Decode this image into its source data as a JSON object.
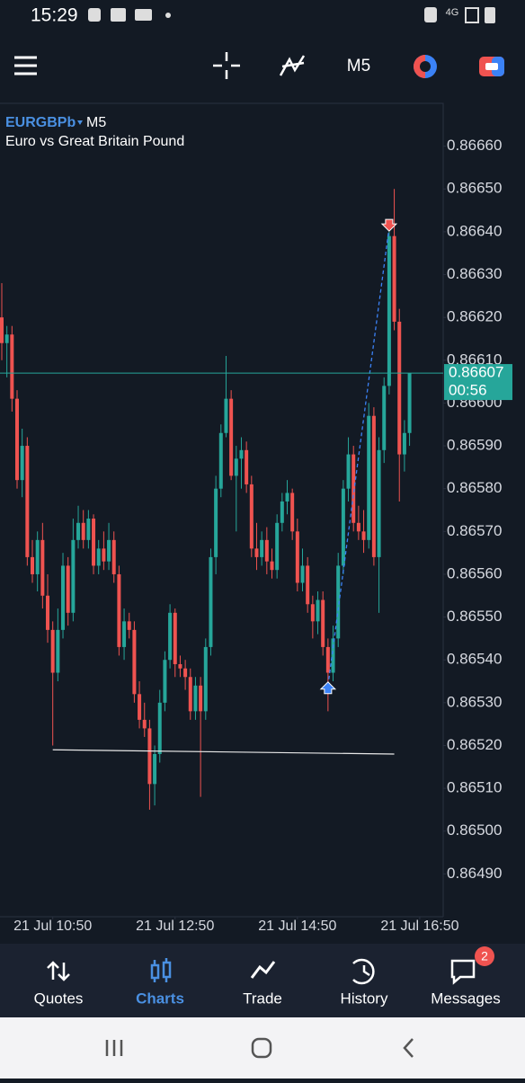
{
  "status_bar": {
    "time": "15:29",
    "network": "4G"
  },
  "toolbar": {
    "timeframe": "M5"
  },
  "chart_data": {
    "type": "candlestick",
    "symbol": "EURGBPb",
    "timeframe": "M5",
    "subtitle": "Euro vs Great Britain Pound",
    "x": [
      0,
      1,
      2,
      3,
      4,
      5,
      6,
      7,
      8,
      9,
      10,
      11,
      12,
      13,
      14,
      15,
      16,
      17,
      18,
      19,
      20,
      21,
      22,
      23,
      24,
      25,
      26,
      27,
      28,
      29,
      30,
      31,
      32,
      33,
      34,
      35,
      36,
      37,
      38,
      39,
      40,
      41,
      42,
      43,
      44,
      45,
      46,
      47,
      48,
      49,
      50,
      51,
      52,
      53,
      54,
      55,
      56,
      57,
      58,
      59,
      60,
      61,
      62,
      63,
      64,
      65,
      66,
      67,
      68,
      69,
      70,
      71,
      72,
      73,
      74,
      75,
      76,
      77,
      78,
      79,
      80
    ],
    "open": [
      0.8662,
      0.86614,
      0.86616,
      0.86601,
      0.86582,
      0.8659,
      0.86564,
      0.8656,
      0.86568,
      0.86555,
      0.86547,
      0.86537,
      0.86547,
      0.86562,
      0.86551,
      0.86568,
      0.86572,
      0.86568,
      0.86573,
      0.86562,
      0.86566,
      0.86563,
      0.86568,
      0.8656,
      0.86543,
      0.86549,
      0.86547,
      0.86532,
      0.86526,
      0.86524,
      0.86511,
      0.86518,
      0.8653,
      0.8654,
      0.86551,
      0.86539,
      0.86538,
      0.86536,
      0.86528,
      0.86534,
      0.86528,
      0.86543,
      0.86564,
      0.8658,
      0.86593,
      0.86601,
      0.86583,
      0.86587,
      0.86589,
      0.86581,
      0.86566,
      0.86564,
      0.86568,
      0.86563,
      0.86561,
      0.86572,
      0.86577,
      0.86579,
      0.8657,
      0.86558,
      0.86562,
      0.86553,
      0.86549,
      0.86554,
      0.86543,
      0.86537,
      0.86545,
      0.86562,
      0.8658,
      0.86588,
      0.86572,
      0.8657,
      0.86568,
      0.86597,
      0.86564,
      0.86589,
      0.86604,
      0.86639,
      0.86619,
      0.86588,
      0.86593
    ],
    "high": [
      0.86628,
      0.86618,
      0.86618,
      0.86603,
      0.86594,
      0.86592,
      0.86568,
      0.8657,
      0.86572,
      0.8656,
      0.86549,
      0.86552,
      0.86565,
      0.86564,
      0.86573,
      0.86576,
      0.86575,
      0.86575,
      0.86574,
      0.86568,
      0.8657,
      0.86572,
      0.8657,
      0.86562,
      0.86552,
      0.86551,
      0.86549,
      0.86535,
      0.8653,
      0.86526,
      0.8652,
      0.86533,
      0.86542,
      0.86553,
      0.86552,
      0.86541,
      0.8654,
      0.86538,
      0.86536,
      0.86536,
      0.86545,
      0.86566,
      0.86583,
      0.86595,
      0.86611,
      0.86603,
      0.8659,
      0.86592,
      0.86591,
      0.86583,
      0.86572,
      0.8657,
      0.86571,
      0.86566,
      0.86574,
      0.86579,
      0.86582,
      0.8658,
      0.86573,
      0.86566,
      0.86564,
      0.86555,
      0.86556,
      0.86556,
      0.86545,
      0.86548,
      0.86565,
      0.86582,
      0.86592,
      0.8659,
      0.86576,
      0.86575,
      0.866,
      0.86599,
      0.86592,
      0.86606,
      0.8664,
      0.8665,
      0.86622,
      0.86596,
      0.86607
    ],
    "low": [
      0.8661,
      0.86606,
      0.86598,
      0.8658,
      0.86578,
      0.86562,
      0.86558,
      0.86556,
      0.86552,
      0.86544,
      0.8652,
      0.86535,
      0.86545,
      0.86548,
      0.86549,
      0.86566,
      0.86566,
      0.86566,
      0.8656,
      0.8656,
      0.86561,
      0.86561,
      0.86558,
      0.86541,
      0.8654,
      0.86545,
      0.8653,
      0.86524,
      0.86522,
      0.86505,
      0.86506,
      0.86516,
      0.86528,
      0.86538,
      0.86536,
      0.86536,
      0.86533,
      0.86526,
      0.86526,
      0.86508,
      0.86526,
      0.86541,
      0.8656,
      0.86578,
      0.86592,
      0.86582,
      0.8657,
      0.8658,
      0.86579,
      0.86564,
      0.86561,
      0.86562,
      0.8656,
      0.86559,
      0.86559,
      0.8657,
      0.86574,
      0.86568,
      0.86556,
      0.86556,
      0.86551,
      0.86545,
      0.86546,
      0.86541,
      0.86528,
      0.86535,
      0.86543,
      0.8656,
      0.86577,
      0.8657,
      0.86568,
      0.86565,
      0.86566,
      0.86562,
      0.86551,
      0.86586,
      0.86602,
      0.86617,
      0.86577,
      0.86584,
      0.8659
    ],
    "close": [
      0.86614,
      0.86616,
      0.86601,
      0.86582,
      0.8659,
      0.86564,
      0.8656,
      0.86568,
      0.86555,
      0.86547,
      0.86537,
      0.86547,
      0.86562,
      0.86551,
      0.86568,
      0.86572,
      0.86568,
      0.86573,
      0.86562,
      0.86566,
      0.86563,
      0.86568,
      0.8656,
      0.86543,
      0.86549,
      0.86547,
      0.86532,
      0.86526,
      0.86524,
      0.86511,
      0.86518,
      0.8653,
      0.8654,
      0.86551,
      0.86539,
      0.86538,
      0.86536,
      0.86528,
      0.86534,
      0.86528,
      0.86543,
      0.86564,
      0.8658,
      0.86593,
      0.86601,
      0.86583,
      0.86587,
      0.86589,
      0.86581,
      0.86566,
      0.86564,
      0.86568,
      0.86563,
      0.86561,
      0.86572,
      0.86577,
      0.86579,
      0.8657,
      0.86558,
      0.86562,
      0.86553,
      0.86549,
      0.86554,
      0.86543,
      0.86537,
      0.86545,
      0.86562,
      0.8658,
      0.86588,
      0.86572,
      0.8657,
      0.86568,
      0.86597,
      0.86564,
      0.86589,
      0.86604,
      0.86639,
      0.86619,
      0.86588,
      0.86593,
      0.86607
    ],
    "up_color": "#26a69a",
    "down_color": "#ef5350",
    "xlim": [
      -0.35,
      86.6
    ],
    "ylim": [
      0.8648,
      0.8667
    ],
    "xticks": [
      {
        "value": 10,
        "label": "21 Jul 10:50"
      },
      {
        "value": 34,
        "label": "21 Jul 12:50"
      },
      {
        "value": 58,
        "label": "21 Jul 14:50"
      },
      {
        "value": 82,
        "label": "21 Jul 16:50"
      }
    ],
    "yticks": [
      {
        "value": 0.8649,
        "label": "0.86490"
      },
      {
        "value": 0.865,
        "label": "0.86500"
      },
      {
        "value": 0.8651,
        "label": "0.86510"
      },
      {
        "value": 0.8652,
        "label": "0.86520"
      },
      {
        "value": 0.8653,
        "label": "0.86530"
      },
      {
        "value": 0.8654,
        "label": "0.86540"
      },
      {
        "value": 0.8655,
        "label": "0.86550"
      },
      {
        "value": 0.8656,
        "label": "0.86560"
      },
      {
        "value": 0.8657,
        "label": "0.86570"
      },
      {
        "value": 0.8658,
        "label": "0.86580"
      },
      {
        "value": 0.8659,
        "label": "0.86590"
      },
      {
        "value": 0.866,
        "label": "0.86600"
      },
      {
        "value": 0.8661,
        "label": "0.86610"
      },
      {
        "value": 0.8662,
        "label": "0.86620"
      },
      {
        "value": 0.8663,
        "label": "0.86630"
      },
      {
        "value": 0.8664,
        "label": "0.86640"
      },
      {
        "value": 0.8665,
        "label": "0.86650"
      },
      {
        "value": 0.8666,
        "label": "0.86660"
      }
    ],
    "current_price": 0.86607,
    "countdown": "00:56",
    "trendline": {
      "x": [
        10,
        77
      ],
      "y": [
        0.86519,
        0.86518
      ]
    },
    "trade": {
      "x": [
        64,
        76
      ],
      "y": [
        0.86534,
        0.86641
      ]
    }
  },
  "nav": {
    "items": [
      "Quotes",
      "Charts",
      "Trade",
      "History",
      "Messages"
    ],
    "badge": "2"
  }
}
